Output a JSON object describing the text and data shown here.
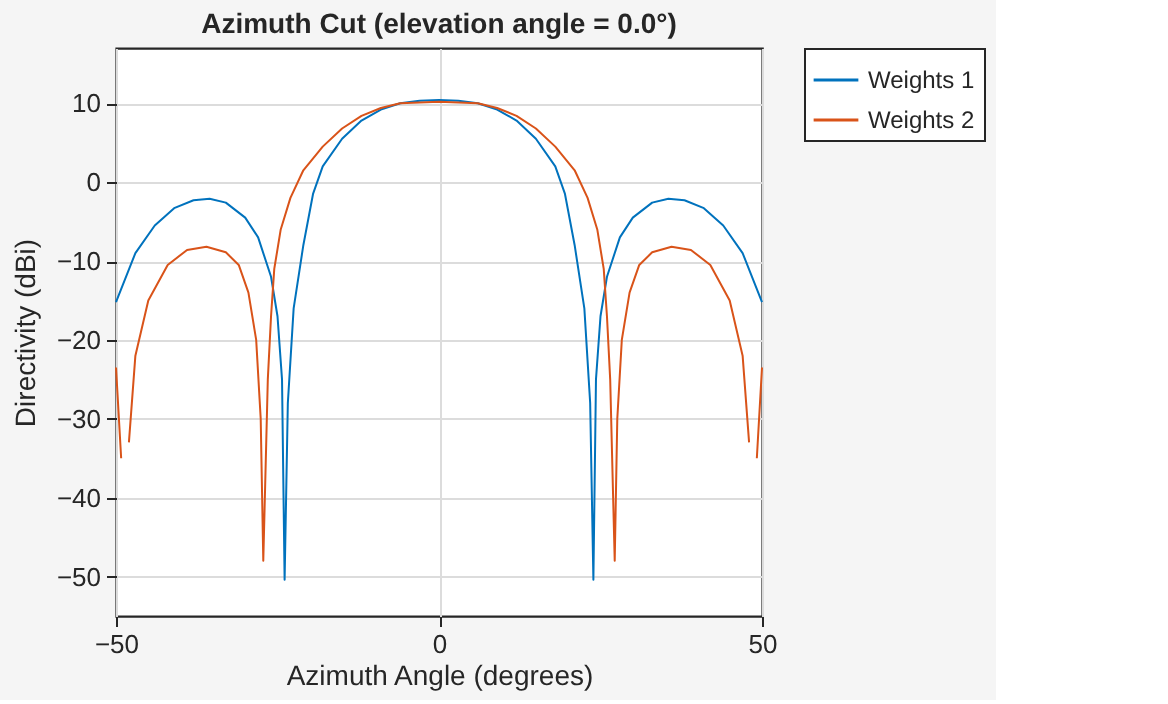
{
  "chart_data": {
    "type": "line",
    "title": "Azimuth Cut (elevation angle = 0.0°)",
    "xlabel": "Azimuth Angle (degrees)",
    "ylabel": "Directivity (dBi)",
    "xlim": [
      -50,
      50
    ],
    "xticks": [
      -50,
      0,
      50
    ],
    "ylim": [
      -55,
      17
    ],
    "yticks": [
      -50,
      -40,
      -30,
      -20,
      -10,
      0,
      10
    ],
    "grid": true,
    "legend": "top right",
    "marker": "none",
    "line_style": "solid",
    "series": [
      {
        "name": "Weights 1",
        "color": "#0072bd",
        "x": [
          -50,
          -47,
          -44,
          -41,
          -38,
          -35.5,
          -33,
          -30,
          -28,
          -26,
          -25,
          -24.3,
          -23.9,
          -23.4,
          -22.5,
          -21,
          -19.5,
          -18,
          -15,
          -12,
          -9,
          -6,
          -3,
          0,
          3,
          6,
          9,
          12,
          15,
          18,
          19.5,
          21,
          22.5,
          23.4,
          23.9,
          24.3,
          25,
          26,
          28,
          30,
          33,
          35.5,
          38,
          41,
          44,
          47,
          50
        ],
        "values": [
          -15.2,
          -9,
          -5.5,
          -3.3,
          -2.3,
          -2.1,
          -2.6,
          -4.5,
          -7,
          -12,
          -17,
          -25,
          -50.4,
          -28,
          -16,
          -8,
          -1.5,
          2,
          5.5,
          7.8,
          9.2,
          10,
          10.3,
          10.4,
          10.3,
          10,
          9.2,
          7.8,
          5.5,
          2,
          -1.5,
          -8,
          -16,
          -28,
          -50.4,
          -25,
          -17,
          -12,
          -7,
          -4.5,
          -2.6,
          -2.1,
          -2.3,
          -3.3,
          -5.5,
          -9,
          -15.2
        ]
      },
      {
        "name": "Weights 2",
        "color": "#d95319",
        "x": [
          -50,
          -49.2,
          -48.6,
          -48,
          -47,
          -45,
          -42,
          -39,
          -36,
          -33,
          -31,
          -29.5,
          -28.3,
          -27.6,
          -27.2,
          -26.5,
          -26,
          -25.5,
          -24.5,
          -23,
          -21,
          -18,
          -15,
          -12,
          -9,
          -6,
          -3,
          0,
          3,
          6,
          9,
          12,
          15,
          18,
          21,
          23,
          24.5,
          25.5,
          26,
          26.5,
          27.2,
          27.6,
          28.3,
          29.5,
          31,
          33,
          36,
          39,
          42,
          45,
          47,
          48,
          48.6,
          49.2,
          50
        ],
        "values": [
          -23.5,
          -35,
          null,
          -33,
          -22,
          -15,
          -10.5,
          -8.6,
          -8.2,
          -8.9,
          -10.5,
          -14,
          -20,
          -30,
          -48,
          -25,
          -17,
          -11,
          -6,
          -2,
          1.5,
          4.5,
          6.8,
          8.4,
          9.4,
          10,
          10.1,
          10.2,
          10.1,
          10,
          9.4,
          8.4,
          6.8,
          4.5,
          1.5,
          -2,
          -6,
          -11,
          -17,
          -25,
          -48,
          -30,
          -20,
          -14,
          -10.5,
          -8.9,
          -8.2,
          -8.6,
          -10.5,
          -15,
          -22,
          -33,
          null,
          -35,
          -23.5
        ]
      }
    ]
  }
}
